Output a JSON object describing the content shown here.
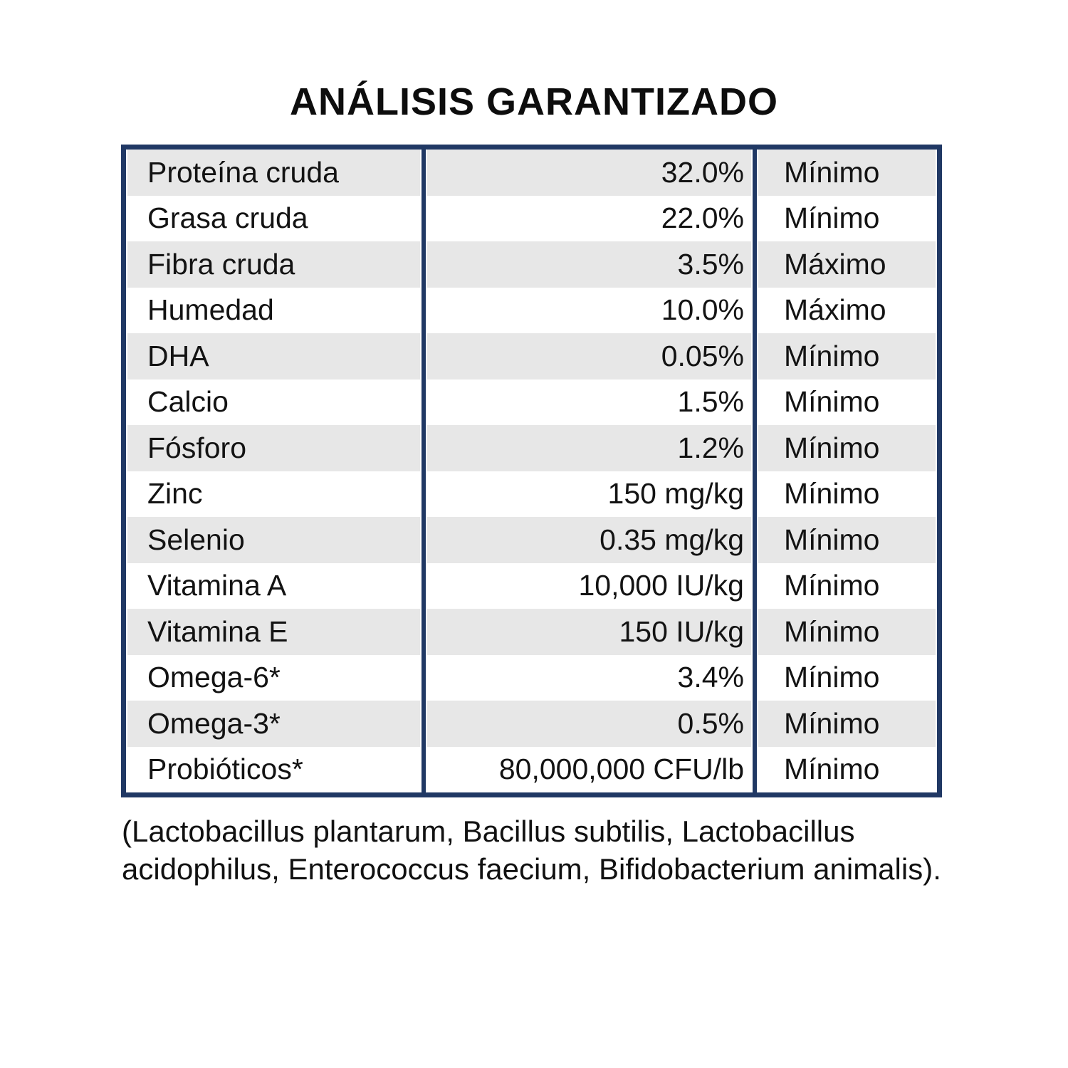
{
  "title": "ANÁLISIS GARANTIZADO",
  "table": {
    "border_color": "#203864",
    "stripe_color": "#e7e7e7",
    "columns": [
      "nutrient",
      "value",
      "qualifier"
    ],
    "rows": [
      {
        "name": "Proteína cruda",
        "value": "32.0%",
        "qualifier": "Mínimo"
      },
      {
        "name": "Grasa cruda",
        "value": "22.0%",
        "qualifier": "Mínimo"
      },
      {
        "name": "Fibra cruda",
        "value": "3.5%",
        "qualifier": "Máximo"
      },
      {
        "name": "Humedad",
        "value": "10.0%",
        "qualifier": "Máximo"
      },
      {
        "name": "DHA",
        "value": "0.05%",
        "qualifier": "Mínimo"
      },
      {
        "name": "Calcio",
        "value": "1.5%",
        "qualifier": "Mínimo"
      },
      {
        "name": "Fósforo",
        "value": "1.2%",
        "qualifier": "Mínimo"
      },
      {
        "name": "Zinc",
        "value": "150 mg/kg",
        "qualifier": "Mínimo"
      },
      {
        "name": "Selenio",
        "value": "0.35 mg/kg",
        "qualifier": "Mínimo"
      },
      {
        "name": "Vitamina A",
        "value": "10,000 IU/kg",
        "qualifier": "Mínimo"
      },
      {
        "name": "Vitamina E",
        "value": "150 IU/kg",
        "qualifier": "Mínimo"
      },
      {
        "name": "Omega-6*",
        "value": "3.4%",
        "qualifier": "Mínimo"
      },
      {
        "name": "Omega-3*",
        "value": "0.5%",
        "qualifier": "Mínimo"
      },
      {
        "name": "Probióticos*",
        "value": "80,000,000 CFU/lb",
        "qualifier": "Mínimo"
      }
    ]
  },
  "footnote": "(Lactobacillus plantarum, Bacillus subtilis, Lactobacillus acidophilus, Enterococcus faecium, Bifidobacterium animalis)."
}
